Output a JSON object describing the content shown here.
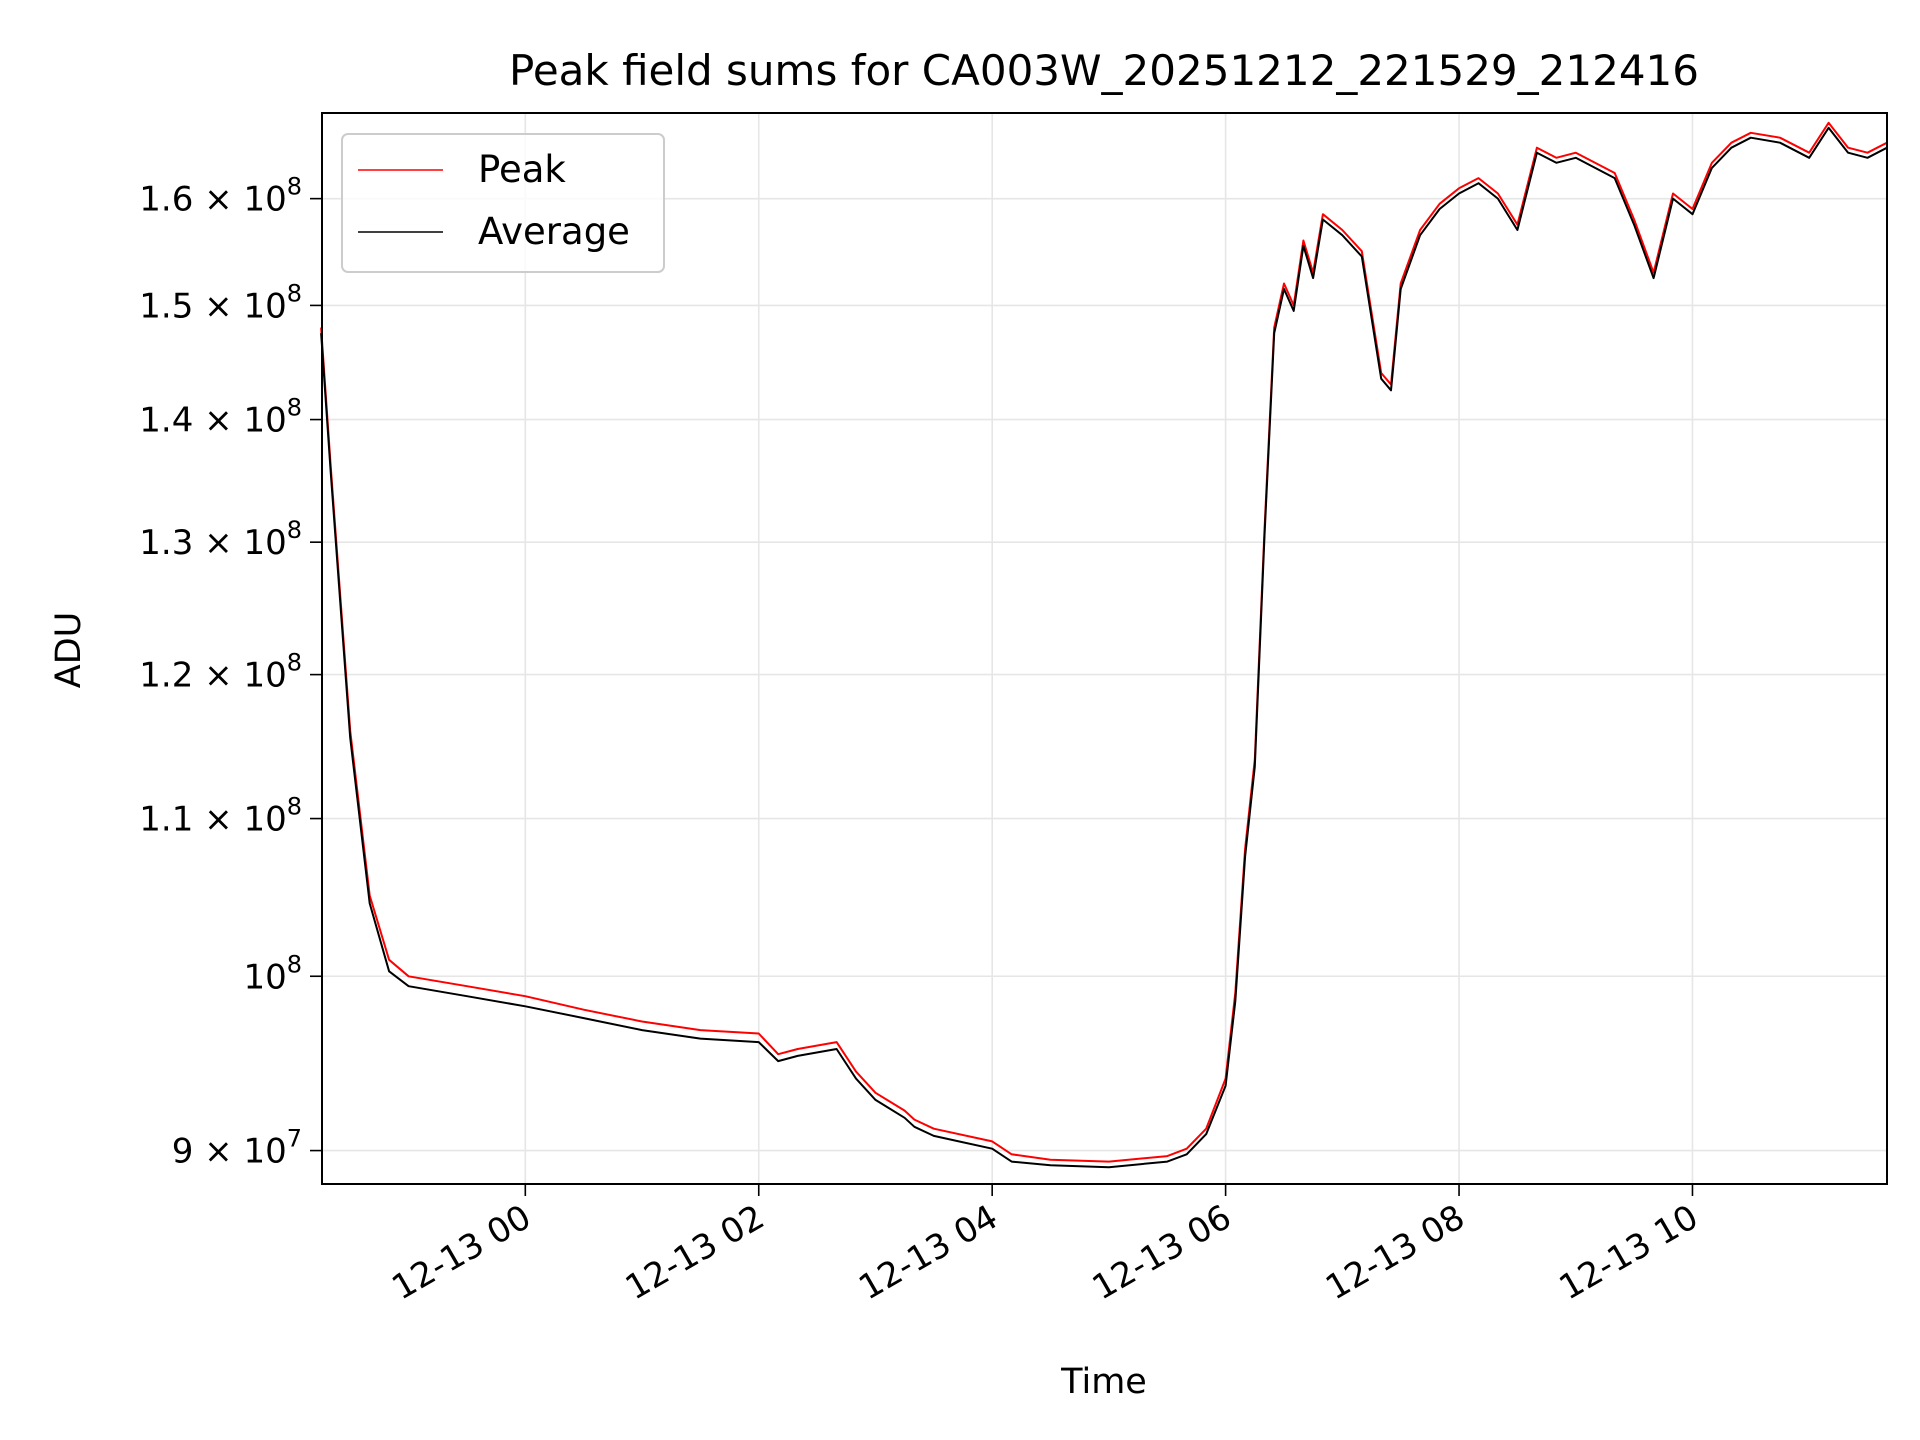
{
  "chart_data": {
    "type": "line",
    "title": "Peak field sums for CA003W_20251212_221529_212416",
    "xlabel": "Time",
    "ylabel": "ADU",
    "x_range": [
      "2025-12-12 22:15:29",
      "2025-12-13 11:40:00"
    ],
    "y_scale": "log",
    "ylim": [
      88200000,
      168500000
    ],
    "grid": true,
    "legend_placement": "top-left",
    "x_ticks": [
      {
        "value": "2025-12-13 00:00",
        "label": "12-13 00"
      },
      {
        "value": "2025-12-13 02:00",
        "label": "12-13 02"
      },
      {
        "value": "2025-12-13 04:00",
        "label": "12-13 04"
      },
      {
        "value": "2025-12-13 06:00",
        "label": "12-13 06"
      },
      {
        "value": "2025-12-13 08:00",
        "label": "12-13 08"
      },
      {
        "value": "2025-12-13 10:00",
        "label": "12-13 10"
      }
    ],
    "y_ticks": [
      {
        "value": 90000000,
        "mantissa": "9",
        "exponent": "7"
      },
      {
        "value": 100000000,
        "mantissa": "",
        "exponent": "8"
      },
      {
        "value": 110000000,
        "mantissa": "1.1",
        "exponent": "8"
      },
      {
        "value": 120000000,
        "mantissa": "1.2",
        "exponent": "8"
      },
      {
        "value": 130000000,
        "mantissa": "1.3",
        "exponent": "8"
      },
      {
        "value": 140000000,
        "mantissa": "1.4",
        "exponent": "8"
      },
      {
        "value": 150000000,
        "mantissa": "1.5",
        "exponent": "8"
      },
      {
        "value": 160000000,
        "mantissa": "1.6",
        "exponent": "8"
      }
    ],
    "series": [
      {
        "name": "Peak",
        "color": "#ff0000",
        "x": [
          "2025-12-12 22:15",
          "2025-12-12 22:20",
          "2025-12-12 22:30",
          "2025-12-12 22:40",
          "2025-12-12 22:50",
          "2025-12-12 23:00",
          "2025-12-12 23:30",
          "2025-12-13 00:00",
          "2025-12-13 00:30",
          "2025-12-13 01:00",
          "2025-12-13 01:30",
          "2025-12-13 02:00",
          "2025-12-13 02:10",
          "2025-12-13 02:20",
          "2025-12-13 02:40",
          "2025-12-13 02:50",
          "2025-12-13 03:00",
          "2025-12-13 03:15",
          "2025-12-13 03:20",
          "2025-12-13 03:30",
          "2025-12-13 04:00",
          "2025-12-13 04:10",
          "2025-12-13 04:30",
          "2025-12-13 05:00",
          "2025-12-13 05:30",
          "2025-12-13 05:40",
          "2025-12-13 05:50",
          "2025-12-13 06:00",
          "2025-12-13 06:05",
          "2025-12-13 06:10",
          "2025-12-13 06:15",
          "2025-12-13 06:20",
          "2025-12-13 06:25",
          "2025-12-13 06:30",
          "2025-12-13 06:35",
          "2025-12-13 06:40",
          "2025-12-13 06:45",
          "2025-12-13 06:50",
          "2025-12-13 07:00",
          "2025-12-13 07:10",
          "2025-12-13 07:20",
          "2025-12-13 07:25",
          "2025-12-13 07:30",
          "2025-12-13 07:40",
          "2025-12-13 07:50",
          "2025-12-13 08:00",
          "2025-12-13 08:10",
          "2025-12-13 08:20",
          "2025-12-13 08:30",
          "2025-12-13 08:40",
          "2025-12-13 08:50",
          "2025-12-13 09:00",
          "2025-12-13 09:20",
          "2025-12-13 09:30",
          "2025-12-13 09:40",
          "2025-12-13 09:50",
          "2025-12-13 10:00",
          "2025-12-13 10:10",
          "2025-12-13 10:20",
          "2025-12-13 10:30",
          "2025-12-13 10:45",
          "2025-12-13 11:00",
          "2025-12-13 11:10",
          "2025-12-13 11:20",
          "2025-12-13 11:30",
          "2025-12-13 11:40"
        ],
        "values": [
          148000000,
          136000000,
          116000000,
          105000000,
          101000000,
          100000000,
          99400000,
          98800000,
          98000000,
          97300000,
          96800000,
          96600000,
          95400000,
          95700000,
          96100000,
          94400000,
          93200000,
          92200000,
          91700000,
          91200000,
          90500000,
          89800000,
          89500000,
          89400000,
          89700000,
          90100000,
          91200000,
          94000000,
          99000000,
          108000000,
          114000000,
          131000000,
          148000000,
          152000000,
          150000000,
          156000000,
          153000000,
          158500000,
          157000000,
          155000000,
          144000000,
          143000000,
          152000000,
          157000000,
          159500000,
          161000000,
          162000000,
          160500000,
          157500000,
          165000000,
          164000000,
          164500000,
          162500000,
          158000000,
          153000000,
          160500000,
          159000000,
          163500000,
          165500000,
          166500000,
          166000000,
          164500000,
          167500000,
          165000000,
          164500000,
          165500000
        ]
      },
      {
        "name": "Average",
        "color": "#000000",
        "x": [
          "2025-12-12 22:15",
          "2025-12-12 22:20",
          "2025-12-12 22:30",
          "2025-12-12 22:40",
          "2025-12-12 22:50",
          "2025-12-12 23:00",
          "2025-12-12 23:30",
          "2025-12-13 00:00",
          "2025-12-13 00:30",
          "2025-12-13 01:00",
          "2025-12-13 01:30",
          "2025-12-13 02:00",
          "2025-12-13 02:10",
          "2025-12-13 02:20",
          "2025-12-13 02:40",
          "2025-12-13 02:50",
          "2025-12-13 03:00",
          "2025-12-13 03:15",
          "2025-12-13 03:20",
          "2025-12-13 03:30",
          "2025-12-13 04:00",
          "2025-12-13 04:10",
          "2025-12-13 04:30",
          "2025-12-13 05:00",
          "2025-12-13 05:30",
          "2025-12-13 05:40",
          "2025-12-13 05:50",
          "2025-12-13 06:00",
          "2025-12-13 06:05",
          "2025-12-13 06:10",
          "2025-12-13 06:15",
          "2025-12-13 06:20",
          "2025-12-13 06:25",
          "2025-12-13 06:30",
          "2025-12-13 06:35",
          "2025-12-13 06:40",
          "2025-12-13 06:45",
          "2025-12-13 06:50",
          "2025-12-13 07:00",
          "2025-12-13 07:10",
          "2025-12-13 07:20",
          "2025-12-13 07:25",
          "2025-12-13 07:30",
          "2025-12-13 07:40",
          "2025-12-13 07:50",
          "2025-12-13 08:00",
          "2025-12-13 08:10",
          "2025-12-13 08:20",
          "2025-12-13 08:30",
          "2025-12-13 08:40",
          "2025-12-13 08:50",
          "2025-12-13 09:00",
          "2025-12-13 09:20",
          "2025-12-13 09:30",
          "2025-12-13 09:40",
          "2025-12-13 09:50",
          "2025-12-13 10:00",
          "2025-12-13 10:10",
          "2025-12-13 10:20",
          "2025-12-13 10:30",
          "2025-12-13 10:45",
          "2025-12-13 11:00",
          "2025-12-13 11:10",
          "2025-12-13 11:20",
          "2025-12-13 11:30",
          "2025-12-13 11:40"
        ],
        "values": [
          147500000,
          135500000,
          115500000,
          104500000,
          100300000,
          99400000,
          98800000,
          98200000,
          97500000,
          96800000,
          96300000,
          96100000,
          95000000,
          95300000,
          95700000,
          94000000,
          92800000,
          91800000,
          91300000,
          90800000,
          90100000,
          89400000,
          89200000,
          89100000,
          89400000,
          89800000,
          90900000,
          93600000,
          98500000,
          107500000,
          113500000,
          130500000,
          147500000,
          151500000,
          149500000,
          155500000,
          152500000,
          158000000,
          156500000,
          154500000,
          143500000,
          142500000,
          151500000,
          156500000,
          159000000,
          160500000,
          161500000,
          160000000,
          157000000,
          164500000,
          163500000,
          164000000,
          162000000,
          157500000,
          152500000,
          160000000,
          158500000,
          163000000,
          165000000,
          166000000,
          165500000,
          164000000,
          167000000,
          164500000,
          164000000,
          165000000
        ]
      }
    ]
  }
}
